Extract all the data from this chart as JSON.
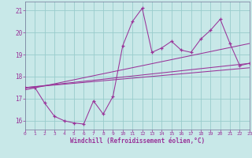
{
  "xlabel": "Windchill (Refroidissement éolien,°C)",
  "background_color": "#c8e8e8",
  "grid_color": "#99cccc",
  "line_color": "#993399",
  "xlim": [
    0,
    23
  ],
  "ylim": [
    15.6,
    21.4
  ],
  "yticks": [
    16,
    17,
    18,
    19,
    20,
    21
  ],
  "xticks": [
    0,
    1,
    2,
    3,
    4,
    5,
    6,
    7,
    8,
    9,
    10,
    11,
    12,
    13,
    14,
    15,
    16,
    17,
    18,
    19,
    20,
    21,
    22,
    23
  ],
  "hours": [
    0,
    1,
    2,
    3,
    4,
    5,
    6,
    7,
    8,
    9,
    10,
    11,
    12,
    13,
    14,
    15,
    16,
    17,
    18,
    19,
    20,
    21,
    22,
    23
  ],
  "temp": [
    17.5,
    17.5,
    16.8,
    16.2,
    16.0,
    15.9,
    15.85,
    16.9,
    16.3,
    17.1,
    19.4,
    20.5,
    21.1,
    19.1,
    19.3,
    19.6,
    19.2,
    19.1,
    19.7,
    20.1,
    20.6,
    19.5,
    18.5,
    18.6
  ],
  "trend_lines": [
    [
      [
        0,
        17.5
      ],
      [
        23,
        18.6
      ]
    ],
    [
      [
        0,
        17.4
      ],
      [
        23,
        19.5
      ]
    ],
    [
      [
        0,
        17.5
      ],
      [
        23,
        18.4
      ]
    ]
  ]
}
